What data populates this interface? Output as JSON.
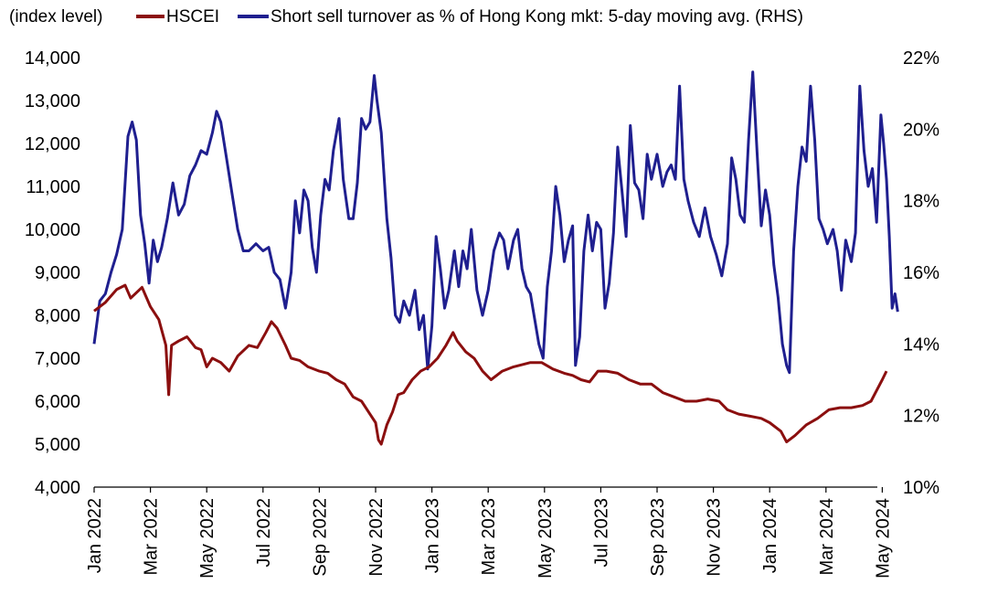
{
  "chart_data": {
    "type": "line",
    "title": "",
    "legend": {
      "prefix": "(index level)",
      "placement": "top-left",
      "entries": [
        {
          "name": "HSCEI",
          "color": "#8b0f0f",
          "axis": "left"
        },
        {
          "name": "Short sell turnover as % of Hong Kong mkt: 5-day moving avg. (RHS)",
          "color": "#1f1f8f",
          "axis": "right"
        }
      ]
    },
    "x_ticks": [
      "Jan 2022",
      "Mar 2022",
      "May 2022",
      "Jul 2022",
      "Sep 2022",
      "Nov 2022",
      "Jan 2023",
      "Mar 2023",
      "May 2023",
      "Jul 2023",
      "Sep 2023",
      "Nov 2023",
      "Jan 2024",
      "Mar 2024",
      "May 2024"
    ],
    "x_range_months": [
      0,
      28.3
    ],
    "left_axis": {
      "min": 4000,
      "max": 14000,
      "step": 1000,
      "tick_labels": [
        "4,000",
        "5,000",
        "6,000",
        "7,000",
        "8,000",
        "9,000",
        "10,000",
        "11,000",
        "12,000",
        "13,000",
        "14,000"
      ]
    },
    "right_axis": {
      "min": 10,
      "max": 22,
      "step": 2,
      "tick_labels": [
        "10%",
        "12%",
        "14%",
        "16%",
        "18%",
        "20%",
        "22%"
      ]
    },
    "series": [
      {
        "name": "HSCEI",
        "axis": "left",
        "color": "#8b0f0f",
        "points": [
          [
            0,
            8100
          ],
          [
            0.4,
            8300
          ],
          [
            0.8,
            8600
          ],
          [
            1.1,
            8700
          ],
          [
            1.3,
            8400
          ],
          [
            1.7,
            8650
          ],
          [
            2.0,
            8200
          ],
          [
            2.3,
            7900
          ],
          [
            2.55,
            7300
          ],
          [
            2.65,
            6150
          ],
          [
            2.75,
            7300
          ],
          [
            3.0,
            7400
          ],
          [
            3.3,
            7500
          ],
          [
            3.6,
            7250
          ],
          [
            3.8,
            7200
          ],
          [
            4.0,
            6800
          ],
          [
            4.2,
            7000
          ],
          [
            4.5,
            6900
          ],
          [
            4.8,
            6700
          ],
          [
            5.1,
            7050
          ],
          [
            5.5,
            7300
          ],
          [
            5.8,
            7250
          ],
          [
            6.1,
            7600
          ],
          [
            6.3,
            7850
          ],
          [
            6.5,
            7700
          ],
          [
            6.8,
            7300
          ],
          [
            7.0,
            7000
          ],
          [
            7.3,
            6950
          ],
          [
            7.6,
            6800
          ],
          [
            8.0,
            6700
          ],
          [
            8.3,
            6650
          ],
          [
            8.6,
            6500
          ],
          [
            8.9,
            6400
          ],
          [
            9.2,
            6100
          ],
          [
            9.5,
            6000
          ],
          [
            9.8,
            5700
          ],
          [
            10.0,
            5500
          ],
          [
            10.1,
            5100
          ],
          [
            10.2,
            5000
          ],
          [
            10.4,
            5450
          ],
          [
            10.6,
            5750
          ],
          [
            10.8,
            6150
          ],
          [
            11.0,
            6200
          ],
          [
            11.3,
            6500
          ],
          [
            11.6,
            6700
          ],
          [
            11.9,
            6800
          ],
          [
            12.2,
            7000
          ],
          [
            12.5,
            7300
          ],
          [
            12.75,
            7600
          ],
          [
            12.9,
            7400
          ],
          [
            13.2,
            7150
          ],
          [
            13.5,
            7000
          ],
          [
            13.8,
            6700
          ],
          [
            14.1,
            6500
          ],
          [
            14.5,
            6700
          ],
          [
            14.9,
            6800
          ],
          [
            15.2,
            6850
          ],
          [
            15.5,
            6900
          ],
          [
            15.9,
            6900
          ],
          [
            16.3,
            6750
          ],
          [
            16.7,
            6650
          ],
          [
            17.0,
            6600
          ],
          [
            17.3,
            6500
          ],
          [
            17.6,
            6450
          ],
          [
            17.9,
            6700
          ],
          [
            18.2,
            6700
          ],
          [
            18.6,
            6650
          ],
          [
            19.0,
            6500
          ],
          [
            19.4,
            6400
          ],
          [
            19.8,
            6400
          ],
          [
            20.2,
            6200
          ],
          [
            20.6,
            6100
          ],
          [
            21.0,
            6000
          ],
          [
            21.4,
            6000
          ],
          [
            21.8,
            6050
          ],
          [
            22.2,
            6000
          ],
          [
            22.5,
            5800
          ],
          [
            22.9,
            5700
          ],
          [
            23.3,
            5650
          ],
          [
            23.7,
            5600
          ],
          [
            24.0,
            5500
          ],
          [
            24.4,
            5300
          ],
          [
            24.6,
            5050
          ],
          [
            24.9,
            5200
          ],
          [
            25.3,
            5450
          ],
          [
            25.7,
            5600
          ],
          [
            26.1,
            5800
          ],
          [
            26.5,
            5850
          ],
          [
            26.9,
            5850
          ],
          [
            27.3,
            5900
          ],
          [
            27.6,
            6000
          ],
          [
            27.8,
            6250
          ],
          [
            28.0,
            6500
          ],
          [
            28.15,
            6700
          ]
        ]
      },
      {
        "name": "Short sell turnover as % of Hong Kong mkt: 5-day moving avg. (RHS)",
        "axis": "right",
        "color": "#1f1f8f",
        "points": [
          [
            0,
            14.0
          ],
          [
            0.2,
            15.2
          ],
          [
            0.4,
            15.4
          ],
          [
            0.6,
            16.0
          ],
          [
            0.8,
            16.5
          ],
          [
            1.0,
            17.2
          ],
          [
            1.2,
            19.8
          ],
          [
            1.35,
            20.2
          ],
          [
            1.5,
            19.7
          ],
          [
            1.65,
            17.6
          ],
          [
            1.8,
            16.8
          ],
          [
            1.95,
            15.7
          ],
          [
            2.1,
            16.9
          ],
          [
            2.25,
            16.3
          ],
          [
            2.4,
            16.7
          ],
          [
            2.6,
            17.5
          ],
          [
            2.8,
            18.5
          ],
          [
            3.0,
            17.6
          ],
          [
            3.2,
            17.9
          ],
          [
            3.4,
            18.7
          ],
          [
            3.6,
            19.0
          ],
          [
            3.8,
            19.4
          ],
          [
            4.0,
            19.3
          ],
          [
            4.2,
            19.9
          ],
          [
            4.35,
            20.5
          ],
          [
            4.5,
            20.2
          ],
          [
            4.7,
            19.2
          ],
          [
            4.9,
            18.2
          ],
          [
            5.1,
            17.2
          ],
          [
            5.3,
            16.6
          ],
          [
            5.5,
            16.6
          ],
          [
            5.75,
            16.8
          ],
          [
            6.0,
            16.6
          ],
          [
            6.2,
            16.7
          ],
          [
            6.4,
            16.0
          ],
          [
            6.6,
            15.8
          ],
          [
            6.8,
            15.0
          ],
          [
            7.0,
            16.0
          ],
          [
            7.15,
            18.0
          ],
          [
            7.3,
            17.1
          ],
          [
            7.45,
            18.3
          ],
          [
            7.6,
            18.0
          ],
          [
            7.75,
            16.7
          ],
          [
            7.9,
            16.0
          ],
          [
            8.05,
            17.6
          ],
          [
            8.2,
            18.6
          ],
          [
            8.35,
            18.3
          ],
          [
            8.5,
            19.4
          ],
          [
            8.7,
            20.3
          ],
          [
            8.85,
            18.6
          ],
          [
            9.05,
            17.5
          ],
          [
            9.2,
            17.5
          ],
          [
            9.35,
            18.5
          ],
          [
            9.5,
            20.3
          ],
          [
            9.65,
            20.0
          ],
          [
            9.8,
            20.2
          ],
          [
            9.95,
            21.5
          ],
          [
            10.05,
            20.8
          ],
          [
            10.2,
            19.9
          ],
          [
            10.4,
            17.5
          ],
          [
            10.55,
            16.4
          ],
          [
            10.7,
            14.8
          ],
          [
            10.85,
            14.6
          ],
          [
            11.0,
            15.2
          ],
          [
            11.2,
            14.8
          ],
          [
            11.4,
            15.5
          ],
          [
            11.55,
            14.4
          ],
          [
            11.7,
            14.8
          ],
          [
            11.85,
            13.3
          ],
          [
            12.0,
            14.5
          ],
          [
            12.15,
            17.0
          ],
          [
            12.3,
            16.1
          ],
          [
            12.45,
            15.0
          ],
          [
            12.6,
            15.5
          ],
          [
            12.8,
            16.6
          ],
          [
            12.95,
            15.6
          ],
          [
            13.1,
            16.6
          ],
          [
            13.25,
            16.1
          ],
          [
            13.4,
            17.2
          ],
          [
            13.6,
            15.5
          ],
          [
            13.8,
            14.8
          ],
          [
            14.0,
            15.5
          ],
          [
            14.2,
            16.6
          ],
          [
            14.4,
            17.1
          ],
          [
            14.55,
            16.9
          ],
          [
            14.7,
            16.1
          ],
          [
            14.9,
            16.9
          ],
          [
            15.05,
            17.2
          ],
          [
            15.2,
            16.1
          ],
          [
            15.35,
            15.6
          ],
          [
            15.5,
            15.4
          ],
          [
            15.65,
            14.7
          ],
          [
            15.8,
            14.0
          ],
          [
            15.95,
            13.6
          ],
          [
            16.1,
            15.6
          ],
          [
            16.25,
            16.6
          ],
          [
            16.4,
            18.4
          ],
          [
            16.55,
            17.6
          ],
          [
            16.7,
            16.3
          ],
          [
            16.85,
            16.9
          ],
          [
            17.0,
            17.3
          ],
          [
            17.1,
            13.4
          ],
          [
            17.25,
            14.2
          ],
          [
            17.4,
            16.6
          ],
          [
            17.55,
            17.6
          ],
          [
            17.7,
            16.6
          ],
          [
            17.85,
            17.4
          ],
          [
            18.0,
            17.2
          ],
          [
            18.15,
            15.0
          ],
          [
            18.3,
            15.7
          ],
          [
            18.45,
            17.1
          ],
          [
            18.6,
            19.5
          ],
          [
            18.75,
            18.3
          ],
          [
            18.9,
            17.0
          ],
          [
            19.05,
            20.1
          ],
          [
            19.2,
            18.5
          ],
          [
            19.35,
            18.3
          ],
          [
            19.5,
            17.5
          ],
          [
            19.65,
            19.3
          ],
          [
            19.8,
            18.6
          ],
          [
            20.0,
            19.3
          ],
          [
            20.2,
            18.4
          ],
          [
            20.35,
            18.8
          ],
          [
            20.5,
            19.0
          ],
          [
            20.65,
            18.6
          ],
          [
            20.8,
            21.2
          ],
          [
            20.95,
            18.6
          ],
          [
            21.1,
            18.0
          ],
          [
            21.3,
            17.4
          ],
          [
            21.5,
            17.0
          ],
          [
            21.7,
            17.8
          ],
          [
            21.9,
            17.0
          ],
          [
            22.1,
            16.5
          ],
          [
            22.3,
            15.9
          ],
          [
            22.5,
            16.8
          ],
          [
            22.65,
            19.2
          ],
          [
            22.8,
            18.6
          ],
          [
            22.95,
            17.6
          ],
          [
            23.1,
            17.4
          ],
          [
            23.25,
            19.7
          ],
          [
            23.4,
            21.6
          ],
          [
            23.55,
            19.4
          ],
          [
            23.7,
            17.3
          ],
          [
            23.85,
            18.3
          ],
          [
            24.0,
            17.6
          ],
          [
            24.15,
            16.2
          ],
          [
            24.3,
            15.3
          ],
          [
            24.45,
            14.0
          ],
          [
            24.6,
            13.4
          ],
          [
            24.7,
            13.2
          ],
          [
            24.85,
            16.6
          ],
          [
            25.0,
            18.4
          ],
          [
            25.15,
            19.5
          ],
          [
            25.3,
            19.1
          ],
          [
            25.45,
            21.2
          ],
          [
            25.6,
            19.7
          ],
          [
            25.75,
            17.5
          ],
          [
            25.9,
            17.2
          ],
          [
            26.05,
            16.8
          ],
          [
            26.25,
            17.2
          ],
          [
            26.4,
            16.6
          ],
          [
            26.55,
            15.5
          ],
          [
            26.7,
            16.9
          ],
          [
            26.9,
            16.3
          ],
          [
            27.05,
            17.1
          ],
          [
            27.2,
            21.2
          ],
          [
            27.35,
            19.4
          ],
          [
            27.5,
            18.4
          ],
          [
            27.65,
            18.9
          ],
          [
            27.8,
            17.4
          ],
          [
            27.95,
            20.4
          ],
          [
            28.05,
            19.6
          ],
          [
            28.15,
            18.6
          ],
          [
            28.25,
            17.0
          ],
          [
            28.35,
            15.0
          ],
          [
            28.45,
            15.4
          ],
          [
            28.55,
            14.9
          ]
        ]
      }
    ]
  }
}
